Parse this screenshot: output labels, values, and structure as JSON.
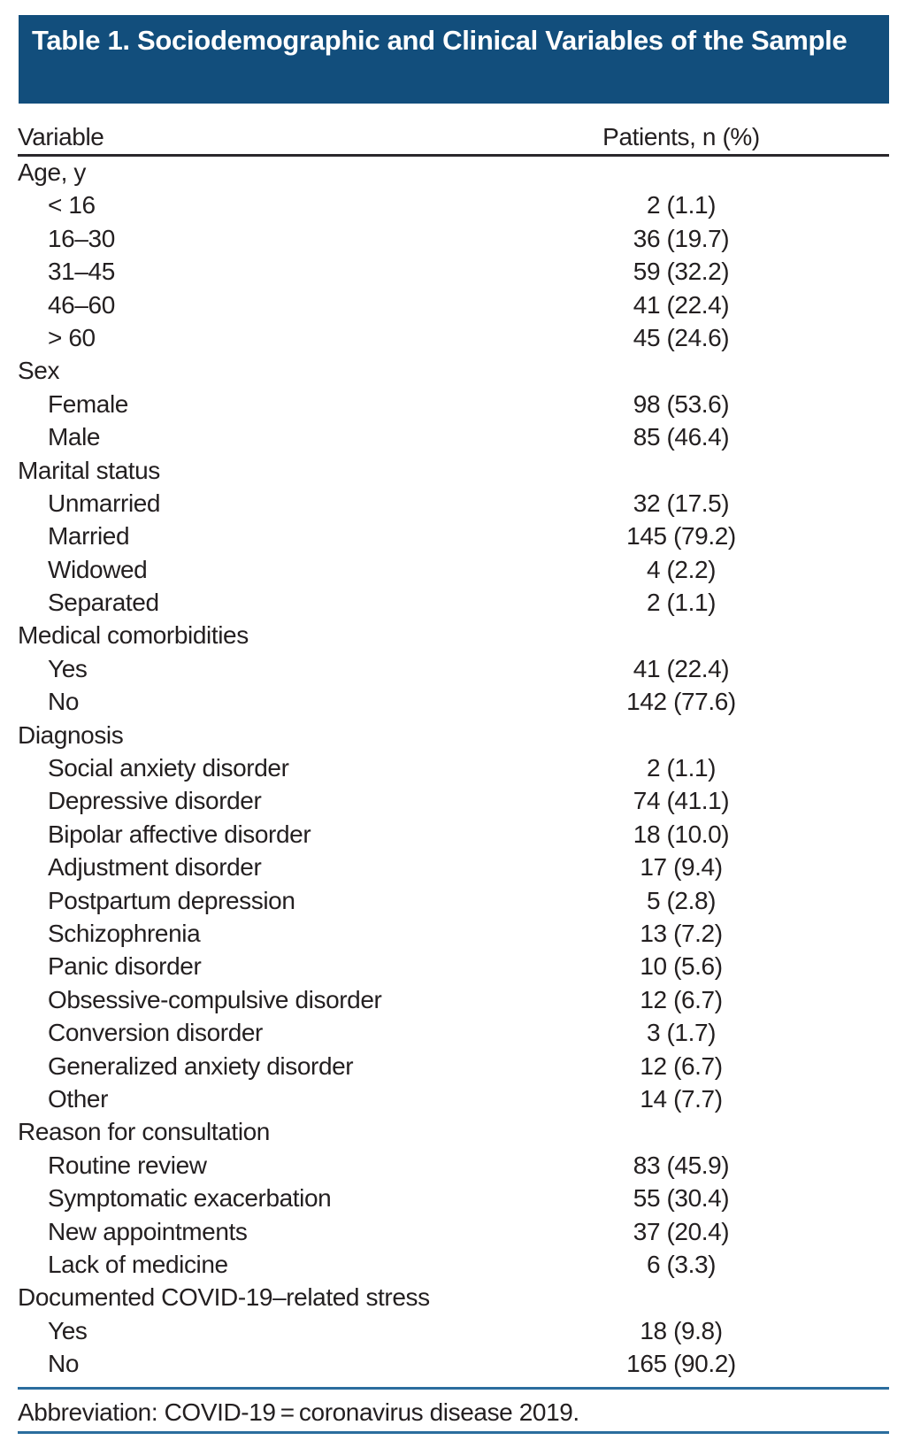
{
  "title": "Table 1. Sociodemographic and Clinical Variables of the Sample",
  "columns": [
    "Variable",
    "Patients, n (%)"
  ],
  "sections": [
    {
      "label": "Age, y",
      "rows": [
        {
          "variable": "< 16",
          "value": "2 (1.1)"
        },
        {
          "variable": "16–30",
          "value": "36 (19.7)"
        },
        {
          "variable": "31–45",
          "value": "59 (32.2)"
        },
        {
          "variable": "46–60",
          "value": "41 (22.4)"
        },
        {
          "variable": "> 60",
          "value": "45 (24.6)"
        }
      ]
    },
    {
      "label": "Sex",
      "rows": [
        {
          "variable": "Female",
          "value": "98 (53.6)"
        },
        {
          "variable": "Male",
          "value": "85 (46.4)"
        }
      ]
    },
    {
      "label": "Marital status",
      "rows": [
        {
          "variable": "Unmarried",
          "value": "32 (17.5)"
        },
        {
          "variable": "Married",
          "value": "145 (79.2)"
        },
        {
          "variable": "Widowed",
          "value": "4 (2.2)"
        },
        {
          "variable": "Separated",
          "value": "2 (1.1)"
        }
      ]
    },
    {
      "label": "Medical comorbidities",
      "rows": [
        {
          "variable": "Yes",
          "value": "41 (22.4)"
        },
        {
          "variable": "No",
          "value": "142 (77.6)"
        }
      ]
    },
    {
      "label": "Diagnosis",
      "rows": [
        {
          "variable": "Social anxiety disorder",
          "value": "2 (1.1)"
        },
        {
          "variable": "Depressive disorder",
          "value": "74 (41.1)"
        },
        {
          "variable": "Bipolar affective disorder",
          "value": "18 (10.0)"
        },
        {
          "variable": "Adjustment disorder",
          "value": "17 (9.4)"
        },
        {
          "variable": "Postpartum depression",
          "value": "5 (2.8)"
        },
        {
          "variable": "Schizophrenia",
          "value": "13 (7.2)"
        },
        {
          "variable": "Panic disorder",
          "value": "10 (5.6)"
        },
        {
          "variable": "Obsessive-compulsive disorder",
          "value": "12 (6.7)"
        },
        {
          "variable": "Conversion disorder",
          "value": "3 (1.7)"
        },
        {
          "variable": "Generalized anxiety disorder",
          "value": "12 (6.7)"
        },
        {
          "variable": "Other",
          "value": "14 (7.7)"
        }
      ]
    },
    {
      "label": "Reason for consultation",
      "rows": [
        {
          "variable": "Routine review",
          "value": "83 (45.9)"
        },
        {
          "variable": "Symptomatic exacerbation",
          "value": "55 (30.4)"
        },
        {
          "variable": "New appointments",
          "value": "37 (20.4)"
        },
        {
          "variable": "Lack of medicine",
          "value": "6 (3.3)"
        }
      ]
    },
    {
      "label": "Documented COVID-19–related stress",
      "rows": [
        {
          "variable": "Yes",
          "value": "18 (9.8)"
        },
        {
          "variable": "No",
          "value": "165 (90.2)"
        }
      ]
    }
  ],
  "footnote": "Abbreviation: COVID-19 = coronavirus disease 2019.",
  "colors": {
    "title_bar_bg": "#124e7c",
    "title_text": "#ffffff",
    "header_rule": "#2a272b",
    "footer_rules": "#2b6d9e",
    "body_text": "#231f20"
  }
}
